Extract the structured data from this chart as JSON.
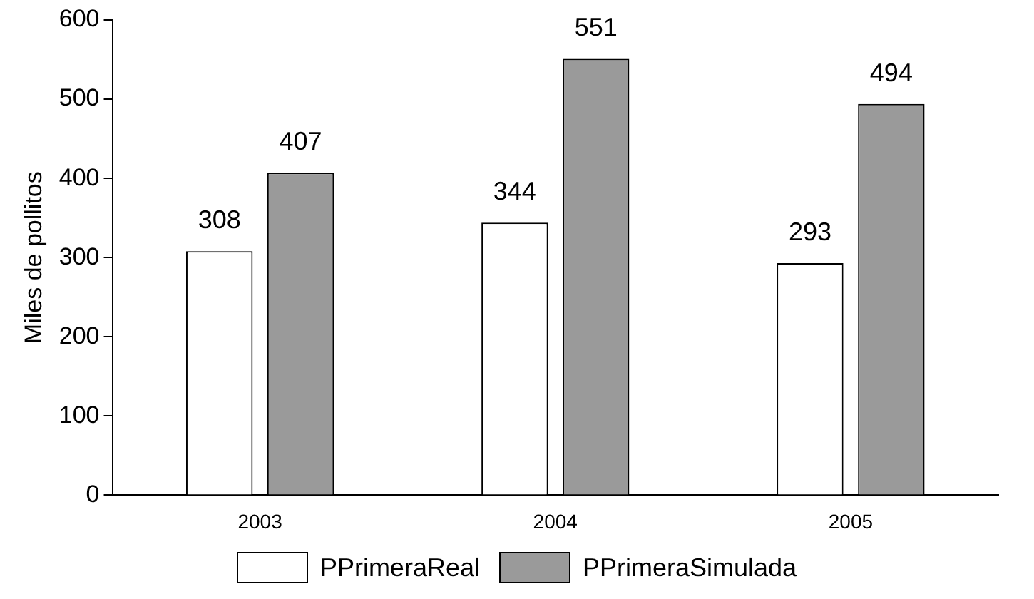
{
  "chart_data": {
    "type": "bar",
    "ylabel": "Miles de pollitos",
    "categories": [
      "2003",
      "2004",
      "2005"
    ],
    "series": [
      {
        "name": "PPrimeraReal",
        "color": "#ffffff",
        "values": [
          308,
          344,
          293
        ]
      },
      {
        "name": "PPrimeraSimulada",
        "color": "#9a9a9a",
        "values": [
          407,
          551,
          494
        ]
      }
    ],
    "ylim": [
      0,
      600
    ],
    "yticks": [
      0,
      100,
      200,
      300,
      400,
      500,
      600
    ],
    "grid": false,
    "legend": "bottom",
    "data_labels": true
  }
}
